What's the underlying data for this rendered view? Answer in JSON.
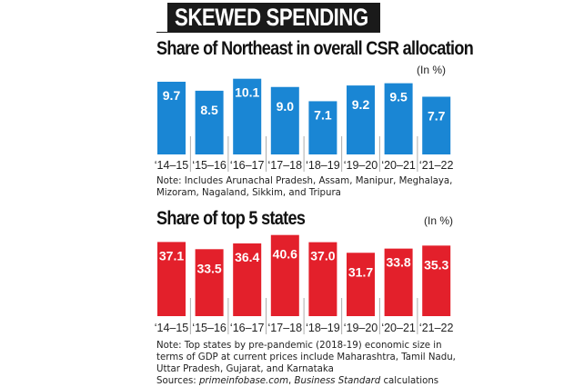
{
  "banner": "SKEWED SPENDING",
  "chart_data": [
    {
      "type": "bar",
      "title": "Share of Northeast in overall CSR allocation",
      "unit": "(In %)",
      "categories": [
        "'14-15",
        "'15-16",
        "'16-17",
        "'17-18",
        "'18-19",
        "'19-20",
        "'20-21",
        "'21-22"
      ],
      "values": [
        9.7,
        8.5,
        10.1,
        9.0,
        7.1,
        9.2,
        9.5,
        7.7
      ],
      "labels": [
        "9.7",
        "8.5",
        "10.1",
        "9.0",
        "7.1",
        "9.2",
        "9.5",
        "7.7"
      ],
      "color": "#1a86d4",
      "note": "Note: Includes Arunachal Pradesh, Assam, Manipur, Meghalaya, Mizoram, Nagaland, Sikkim, and Tripura"
    },
    {
      "type": "bar",
      "title": "Share of top 5 states",
      "unit": "(In %)",
      "categories": [
        "'14-15",
        "'15-16",
        "'16-17",
        "'17-18",
        "'18-19",
        "'19-20",
        "'20-21",
        "'21-22"
      ],
      "values": [
        37.1,
        33.5,
        36.4,
        40.6,
        37.0,
        31.7,
        33.8,
        35.3
      ],
      "labels": [
        "37.1",
        "33.5",
        "36.4",
        "40.6",
        "37.0",
        "31.7",
        "33.8",
        "35.3"
      ],
      "color": "#e3202b",
      "note": "Note: Top states by pre-pandemic (2018-19) economic size in terms of GDP at current prices include Maharashtra, Tamil Nadu, Uttar Pradesh, Gujarat, and Karnataka"
    }
  ],
  "sources": {
    "prefix": "Sources: ",
    "src1": "primeinfobase.com",
    "sep": ", ",
    "src2": "Business Standard",
    "suffix": " calculations"
  }
}
